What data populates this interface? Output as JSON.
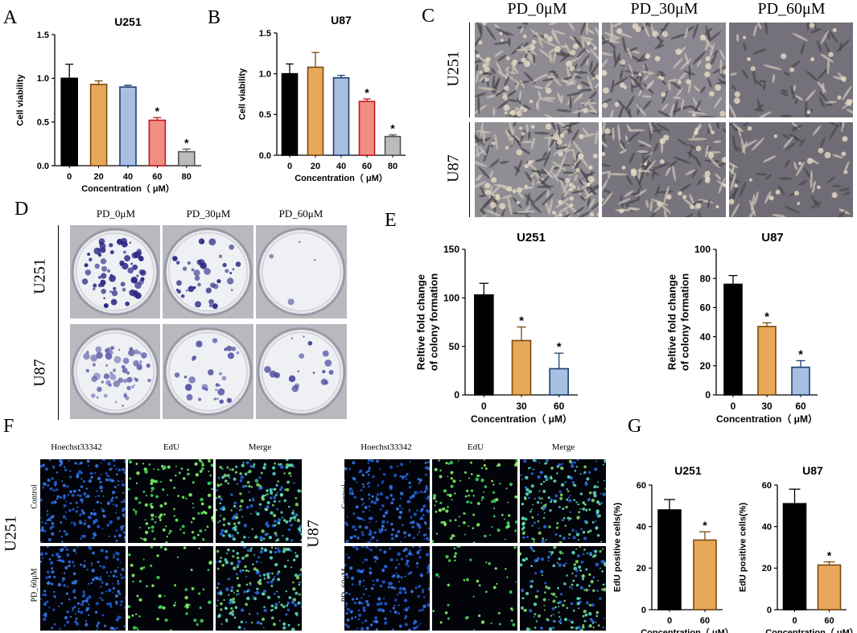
{
  "panels": {
    "A": "A",
    "B": "B",
    "C": "C",
    "D": "D",
    "E": "E",
    "F": "F",
    "G": "G"
  },
  "colors": {
    "black": "#000000",
    "orange": "#E8A859",
    "blue": "#A8BFE2",
    "red": "#F08E83",
    "gray": "#BBBBBB",
    "outline_orange": "#7A4A10",
    "outline_blue": "#1E3F73",
    "outline_red": "#C4161C",
    "outline_gray": "#555555"
  },
  "panel_C": {
    "columns": [
      "PD_0μM",
      "PD_30μM",
      "PD_60μM"
    ],
    "rows": [
      "U251",
      "U87"
    ]
  },
  "panel_D": {
    "columns": [
      "PD_0μM",
      "PD_30μM",
      "PD_60μM"
    ],
    "rows": [
      "U251",
      "U87"
    ]
  },
  "panel_F": {
    "left": {
      "cell_line": "U251",
      "columns": [
        "Hoechst33342",
        "EdU",
        "Merge"
      ],
      "rows": [
        "Control",
        "PD_60μM"
      ]
    },
    "right": {
      "cell_line": "U87",
      "columns": [
        "Hoechst33342",
        "EdU",
        "Merge"
      ],
      "rows": [
        "Control",
        "PD_60μM"
      ]
    }
  },
  "chart_data": [
    {
      "id": "A",
      "type": "bar",
      "title": "U251",
      "xlabel": "Concentration（ μM）",
      "ylabel": "Cell viability",
      "categories": [
        "0",
        "20",
        "40",
        "60",
        "80"
      ],
      "values": [
        1.0,
        0.93,
        0.9,
        0.52,
        0.16
      ],
      "errors": [
        0.16,
        0.04,
        0.02,
        0.03,
        0.03
      ],
      "significant": [
        false,
        false,
        false,
        true,
        true
      ],
      "sig_mark": "*",
      "ylim": [
        0,
        1.5
      ],
      "yticks": [
        "0.0",
        "0.5",
        "1.0",
        "1.5"
      ],
      "bar_colors": [
        "#000000",
        "#E8A859",
        "#A8BFE2",
        "#F08E83",
        "#BBBBBB"
      ]
    },
    {
      "id": "B",
      "type": "bar",
      "title": "U87",
      "xlabel": "Concentration（ μM）",
      "ylabel": "Cell viability",
      "categories": [
        "0",
        "20",
        "40",
        "60",
        "80"
      ],
      "values": [
        1.0,
        1.08,
        0.95,
        0.66,
        0.23
      ],
      "errors": [
        0.12,
        0.18,
        0.03,
        0.03,
        0.02
      ],
      "significant": [
        false,
        false,
        false,
        true,
        true
      ],
      "sig_mark": "*",
      "ylim": [
        0,
        1.5
      ],
      "yticks": [
        "0.0",
        "0.5",
        "1.0",
        "1.5"
      ],
      "bar_colors": [
        "#000000",
        "#E8A859",
        "#A8BFE2",
        "#F08E83",
        "#BBBBBB"
      ]
    },
    {
      "id": "E1",
      "type": "bar",
      "title": "U251",
      "xlabel": "Concentration（ μM）",
      "ylabel": "Reltive fold change\nof colony formation",
      "categories": [
        "0",
        "30",
        "60"
      ],
      "values": [
        103,
        56,
        27
      ],
      "errors": [
        12,
        14,
        16
      ],
      "significant": [
        false,
        true,
        true
      ],
      "sig_mark": "*",
      "ylim": [
        0,
        150
      ],
      "yticks": [
        "0",
        "50",
        "100",
        "150"
      ],
      "bar_colors": [
        "#000000",
        "#E8A859",
        "#A8BFE2"
      ]
    },
    {
      "id": "E2",
      "type": "bar",
      "title": "U87",
      "xlabel": "Concentration（ μM）",
      "ylabel": "Reltive fold change\nof colony formation",
      "categories": [
        "0",
        "30",
        "60"
      ],
      "values": [
        76,
        47,
        19
      ],
      "errors": [
        6,
        2.5,
        4.5
      ],
      "significant": [
        false,
        true,
        true
      ],
      "sig_mark": "*",
      "ylim": [
        0,
        100
      ],
      "yticks": [
        "0",
        "20",
        "40",
        "60",
        "80",
        "100"
      ],
      "bar_colors": [
        "#000000",
        "#E8A859",
        "#A8BFE2"
      ]
    },
    {
      "id": "G1",
      "type": "bar",
      "title": "U251",
      "xlabel": "Concentration（ μM）",
      "ylabel": "EdU positive cells(%)",
      "categories": [
        "0",
        "60"
      ],
      "values": [
        48,
        33.5
      ],
      "errors": [
        5,
        4
      ],
      "significant": [
        false,
        true
      ],
      "sig_mark": "*",
      "ylim": [
        0,
        60
      ],
      "yticks": [
        "0",
        "20",
        "40",
        "60"
      ],
      "bar_colors": [
        "#000000",
        "#E8A859"
      ]
    },
    {
      "id": "G2",
      "type": "bar",
      "title": "U87",
      "xlabel": "Concentration（ μM）",
      "ylabel": "EdU positive cells(%)",
      "categories": [
        "0",
        "60"
      ],
      "values": [
        51,
        21.5
      ],
      "errors": [
        7,
        1.5
      ],
      "significant": [
        false,
        true
      ],
      "sig_mark": "*",
      "ylim": [
        0,
        60
      ],
      "yticks": [
        "0",
        "20",
        "40",
        "60"
      ],
      "bar_colors": [
        "#000000",
        "#E8A859"
      ]
    }
  ]
}
